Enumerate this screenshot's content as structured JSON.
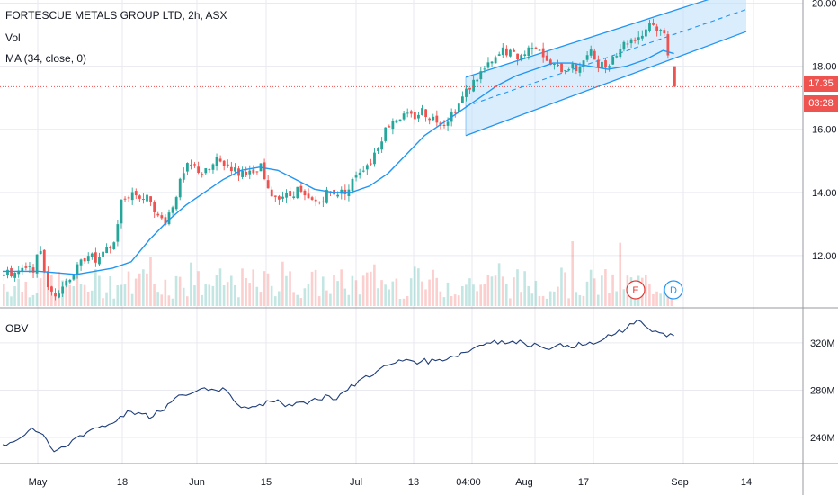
{
  "legend": {
    "title": "FORTESCUE METALS GROUP LTD, 2h, ASX",
    "vol": "Vol",
    "ma": "MA (34, close, 0)",
    "obv": "OBV"
  },
  "price_tag": {
    "value": "17.35",
    "countdown": "03:28"
  },
  "event_markers": [
    {
      "label": "E",
      "color": "#e53935"
    },
    {
      "label": "D",
      "color": "#2196f3"
    }
  ],
  "colors": {
    "up": "#26a69a",
    "down": "#ef5350",
    "ma": "#2196f3",
    "obv": "#1e3d7a",
    "channel": "#2196f3",
    "channel_fill": "#bbdefb",
    "price_line": "#ef5350"
  },
  "chart_data": [
    {
      "type": "candlestick",
      "title": "FORTESCUE METALS GROUP LTD, 2h, ASX",
      "y_ticks": [
        "12.00",
        "14.00",
        "16.00",
        "18.00",
        "20.00"
      ],
      "ylim": [
        10.4,
        20.1
      ],
      "x_ticks": [
        "May",
        "18",
        "Jun",
        "15",
        "Jul",
        "13",
        "04:00",
        "Aug",
        "17",
        "Sep",
        "14"
      ],
      "last_price": 17.35,
      "series": [
        {
          "name": "Price",
          "approx_close_path": [
            [
              0,
              11.4
            ],
            [
              5,
              11.5
            ],
            [
              8,
              11.6
            ],
            [
              10,
              12.2
            ],
            [
              12,
              10.9
            ],
            [
              14,
              10.8
            ],
            [
              17,
              11.2
            ],
            [
              20,
              11.6
            ],
            [
              23,
              12.1
            ],
            [
              25,
              11.8
            ],
            [
              27,
              12.0
            ],
            [
              30,
              12.4
            ],
            [
              32,
              13.7
            ],
            [
              35,
              14.0
            ],
            [
              38,
              13.8
            ],
            [
              40,
              13.8
            ],
            [
              42,
              13.2
            ],
            [
              44,
              13.1
            ],
            [
              46,
              13.6
            ],
            [
              48,
              14.3
            ],
            [
              50,
              14.8
            ],
            [
              52,
              14.8
            ],
            [
              54,
              14.6
            ],
            [
              56,
              14.7
            ],
            [
              58,
              15.0
            ],
            [
              60,
              14.9
            ],
            [
              62,
              14.8
            ],
            [
              64,
              14.6
            ],
            [
              66,
              14.7
            ],
            [
              68,
              14.5
            ],
            [
              70,
              14.8
            ],
            [
              72,
              14.0
            ],
            [
              74,
              13.9
            ],
            [
              76,
              13.9
            ],
            [
              78,
              13.9
            ],
            [
              80,
              14.1
            ],
            [
              82,
              13.8
            ],
            [
              84,
              13.7
            ],
            [
              86,
              13.7
            ],
            [
              88,
              14.0
            ],
            [
              90,
              14.0
            ],
            [
              92,
              14.0
            ],
            [
              94,
              14.1
            ],
            [
              96,
              14.6
            ],
            [
              98,
              14.8
            ],
            [
              100,
              15.0
            ],
            [
              102,
              15.5
            ],
            [
              104,
              16.0
            ],
            [
              106,
              16.3
            ],
            [
              108,
              16.4
            ],
            [
              110,
              16.4
            ],
            [
              112,
              16.4
            ],
            [
              114,
              16.6
            ],
            [
              116,
              16.4
            ],
            [
              118,
              16.3
            ],
            [
              120,
              16.2
            ],
            [
              122,
              16.5
            ],
            [
              124,
              16.8
            ],
            [
              126,
              17.2
            ],
            [
              128,
              17.5
            ],
            [
              130,
              17.8
            ],
            [
              132,
              18.0
            ],
            [
              134,
              18.2
            ],
            [
              136,
              18.5
            ],
            [
              138,
              18.4
            ],
            [
              140,
              18.3
            ],
            [
              142,
              18.4
            ],
            [
              144,
              18.7
            ],
            [
              146,
              18.6
            ],
            [
              148,
              18.1
            ],
            [
              150,
              18.0
            ],
            [
              152,
              17.9
            ],
            [
              154,
              18.0
            ],
            [
              156,
              17.9
            ],
            [
              158,
              18.2
            ],
            [
              160,
              18.4
            ],
            [
              162,
              18.1
            ],
            [
              164,
              18.0
            ],
            [
              166,
              18.3
            ],
            [
              168,
              18.6
            ],
            [
              170,
              18.8
            ],
            [
              172,
              18.9
            ],
            [
              174,
              19.0
            ],
            [
              176,
              19.4
            ],
            [
              178,
              19.2
            ],
            [
              180,
              19.0
            ],
            [
              183,
              17.35
            ]
          ]
        }
      ]
    },
    {
      "type": "line",
      "title": "MA (34, close, 0)",
      "series": [
        {
          "name": "MA (34, close, 0)",
          "approx_path": [
            [
              0,
              11.5
            ],
            [
              10,
              11.5
            ],
            [
              20,
              11.4
            ],
            [
              30,
              11.6
            ],
            [
              35,
              11.8
            ],
            [
              40,
              12.5
            ],
            [
              45,
              13.1
            ],
            [
              50,
              13.6
            ],
            [
              55,
              14.0
            ],
            [
              60,
              14.4
            ],
            [
              65,
              14.7
            ],
            [
              70,
              14.8
            ],
            [
              75,
              14.7
            ],
            [
              80,
              14.4
            ],
            [
              85,
              14.1
            ],
            [
              90,
              14.0
            ],
            [
              95,
              14.0
            ],
            [
              100,
              14.2
            ],
            [
              105,
              14.6
            ],
            [
              110,
              15.2
            ],
            [
              115,
              15.8
            ],
            [
              120,
              16.2
            ],
            [
              125,
              16.6
            ],
            [
              130,
              17.0
            ],
            [
              135,
              17.4
            ],
            [
              140,
              17.7
            ],
            [
              145,
              17.9
            ],
            [
              150,
              18.1
            ],
            [
              155,
              18.1
            ],
            [
              160,
              18.0
            ],
            [
              165,
              17.9
            ],
            [
              170,
              18.0
            ],
            [
              175,
              18.2
            ],
            [
              180,
              18.5
            ],
            [
              183,
              18.4
            ]
          ]
        }
      ]
    },
    {
      "type": "bar",
      "title": "Vol",
      "series": [
        {
          "name": "Vol",
          "note_values": "relative heights only"
        }
      ]
    },
    {
      "type": "line",
      "title": "OBV",
      "y_ticks": [
        "240M",
        "280M",
        "320M"
      ],
      "ylim": [
        218,
        348
      ],
      "series": [
        {
          "name": "OBV",
          "approx_path": [
            [
              0,
              234
            ],
            [
              5,
              240
            ],
            [
              8,
              248
            ],
            [
              10,
              244
            ],
            [
              14,
              228
            ],
            [
              17,
              232
            ],
            [
              20,
              240
            ],
            [
              25,
              248
            ],
            [
              30,
              252
            ],
            [
              32,
              258
            ],
            [
              35,
              262
            ],
            [
              38,
              260
            ],
            [
              40,
              256
            ],
            [
              43,
              262
            ],
            [
              46,
              270
            ],
            [
              49,
              276
            ],
            [
              52,
              278
            ],
            [
              55,
              282
            ],
            [
              58,
              280
            ],
            [
              60,
              282
            ],
            [
              62,
              276
            ],
            [
              64,
              268
            ],
            [
              66,
              266
            ],
            [
              70,
              268
            ],
            [
              74,
              270
            ],
            [
              78,
              268
            ],
            [
              82,
              270
            ],
            [
              86,
              272
            ],
            [
              88,
              276
            ],
            [
              90,
              272
            ],
            [
              94,
              280
            ],
            [
              98,
              290
            ],
            [
              102,
              296
            ],
            [
              106,
              302
            ],
            [
              110,
              306
            ],
            [
              114,
              304
            ],
            [
              118,
              305
            ],
            [
              122,
              308
            ],
            [
              126,
              312
            ],
            [
              130,
              318
            ],
            [
              134,
              322
            ],
            [
              138,
              320
            ],
            [
              142,
              320
            ],
            [
              146,
              318
            ],
            [
              150,
              316
            ],
            [
              154,
              318
            ],
            [
              158,
              318
            ],
            [
              162,
              320
            ],
            [
              166,
              326
            ],
            [
              170,
              332
            ],
            [
              172,
              336
            ],
            [
              174,
              338
            ],
            [
              176,
              332
            ],
            [
              178,
              330
            ],
            [
              180,
              328
            ],
            [
              183,
              326
            ]
          ]
        }
      ]
    }
  ]
}
